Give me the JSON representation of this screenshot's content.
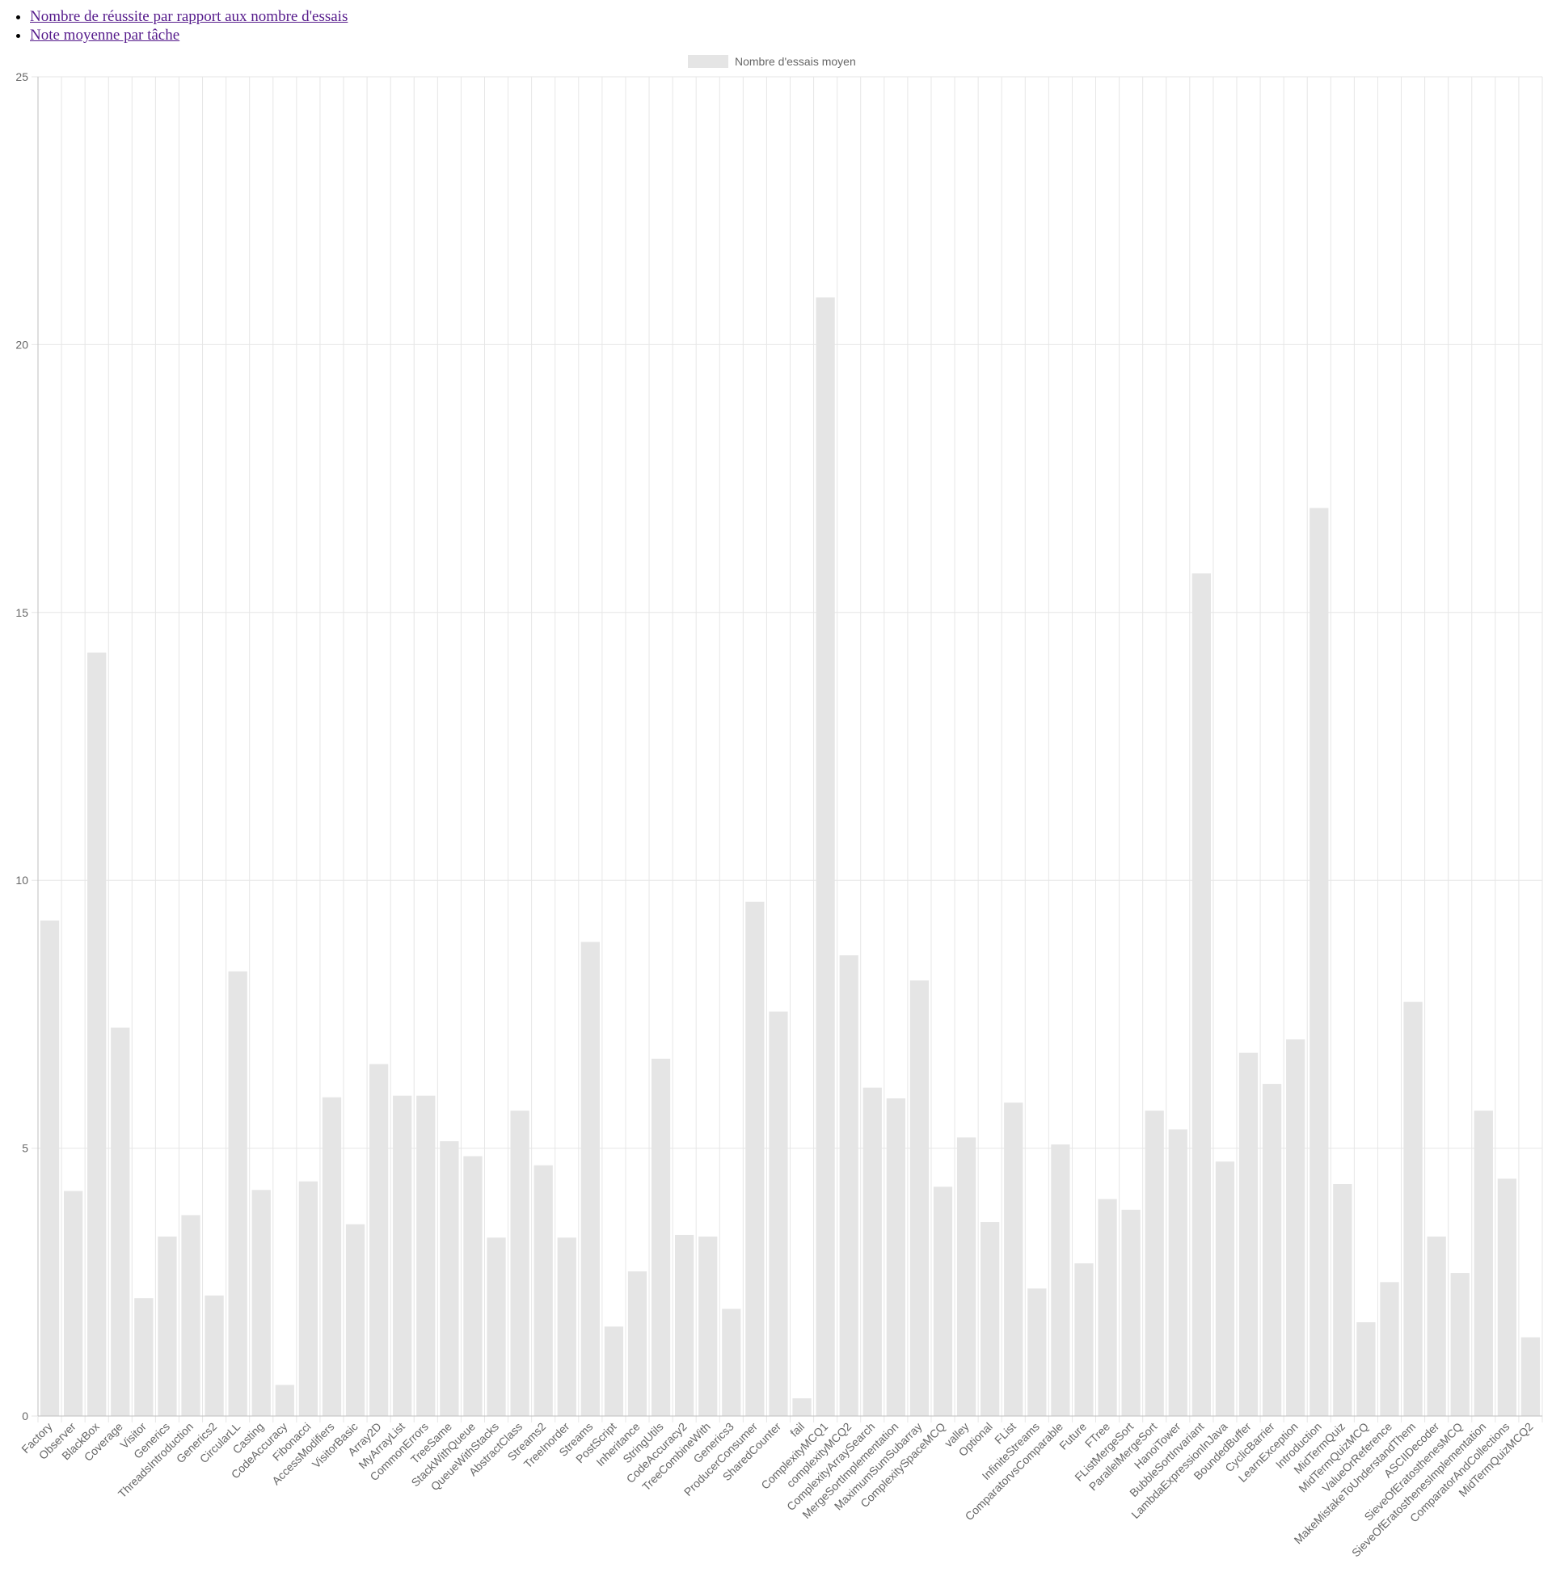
{
  "nav": {
    "links": [
      {
        "label": "Nombre de réussite par rapport aux nombre d'essais"
      },
      {
        "label": "Note moyenne par tâche"
      }
    ]
  },
  "colors": {
    "bar": "#e5e5e5",
    "grid": "#e6e6e6",
    "axis": "#bfbfbf",
    "text": "#666666"
  },
  "chart_data": {
    "type": "bar",
    "title": "",
    "xlabel": "",
    "ylabel": "",
    "ylim": [
      0,
      25
    ],
    "yticks": [
      0,
      5,
      10,
      15,
      20,
      25
    ],
    "grid": true,
    "legend_position": "top",
    "categories": [
      "Factory",
      "Observer",
      "BlackBox",
      "Coverage",
      "Visitor",
      "Generics",
      "ThreadsIntroduction",
      "Generics2",
      "CircularLL",
      "Casting",
      "CodeAccuracy",
      "Fibonacci",
      "AccessModifiers",
      "VisitorBasic",
      "Array2D",
      "MyArrayList",
      "CommonErrors",
      "TreeSame",
      "StackWithQueue",
      "QueueWithStacks",
      "AbstractClass",
      "Streams2",
      "TreeInorder",
      "Streams",
      "PostScript",
      "Inheritance",
      "StringUtils",
      "CodeAccuracy2",
      "TreeCombineWith",
      "Generics3",
      "ProducerConsumer",
      "SharedCounter",
      "fail",
      "ComplexityMCQ1",
      "complexityMCQ2",
      "ComplexityArraySearch",
      "MergeSortImplementation",
      "MaximumSumSubarray",
      "ComplexitySpaceMCQ",
      "valley",
      "Optional",
      "FList",
      "InfiniteStreams",
      "ComparatorvsComparable",
      "Future",
      "FTree",
      "FListMergeSort",
      "ParallelMergeSort",
      "HanoiTower",
      "BubbleSortInvariant",
      "LambdaExpressionInJava",
      "BoundedBuffer",
      "CyclicBarrier",
      "LearnException",
      "Introduction",
      "MidTermQuiz",
      "MidTermQuizMCQ",
      "ValueOrReference",
      "MakeMistakeToUnderstandThem",
      "ASCIIDecoder",
      "SieveOfEratosthenesMCQ",
      "SieveOfEratosthenesImplementation",
      "ComparatorAndCollections",
      "MidTermQuizMCQ2"
    ],
    "series": [
      {
        "name": "Nombre d'essais moyen",
        "values": [
          9.25,
          4.2,
          14.25,
          7.25,
          2.2,
          3.35,
          3.75,
          2.25,
          8.3,
          4.22,
          0.58,
          4.38,
          5.95,
          3.58,
          6.57,
          5.98,
          5.98,
          5.13,
          4.85,
          3.33,
          5.7,
          4.68,
          3.33,
          8.85,
          1.67,
          2.7,
          6.67,
          3.38,
          3.35,
          2.0,
          9.6,
          7.55,
          0.33,
          20.88,
          8.6,
          6.13,
          5.93,
          8.13,
          4.28,
          5.2,
          3.62,
          5.85,
          2.38,
          5.07,
          2.85,
          4.05,
          3.85,
          5.7,
          5.35,
          15.73,
          4.75,
          6.78,
          6.2,
          7.03,
          16.95,
          4.33,
          1.75,
          2.5,
          7.73,
          3.35,
          2.67,
          5.7,
          4.43,
          1.47
        ]
      }
    ]
  }
}
